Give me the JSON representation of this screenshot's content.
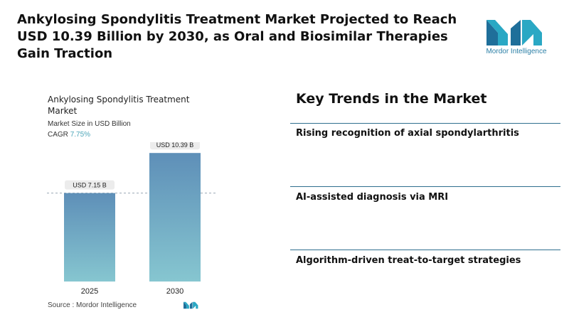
{
  "headline": "Ankylosing Spondylitis Treatment Market Projected to Reach USD 10.39 Billion by 2030, as Oral and Biosimilar Therapies Gain Traction",
  "brand": {
    "name": "Mordor Intelligence",
    "logo_text": "Mordor Intelligence",
    "colors": {
      "teal": "#2aa8c4",
      "blue": "#1f6f9a"
    }
  },
  "chart": {
    "title": "Ankylosing Spondylitis Treatment Market",
    "subtitle": "Market Size in USD Billion",
    "cagr_label": "CAGR",
    "cagr_value": "7.75%",
    "source": "Source :  Mordor Intelligence"
  },
  "chart_data": {
    "type": "bar",
    "categories": [
      "2025",
      "2030"
    ],
    "values": [
      7.15,
      10.39
    ],
    "data_labels": [
      "USD 7.15 B",
      "USD 10.39 B"
    ],
    "title": "Ankylosing Spondylitis Treatment Market",
    "ylabel": "Market Size in USD Billion",
    "reference_line_value": 7.15,
    "grid": false,
    "colors": {
      "bar_top": "#5e8fb8",
      "bar_bottom": "#86c6d0",
      "label_bg": "#ececec"
    }
  },
  "trends": {
    "title": "Key Trends in the Market",
    "items": [
      "Rising recognition of axial spondylarthritis",
      "AI-assisted diagnosis via MRI",
      "Algorithm-driven treat-to-target strategies"
    ]
  }
}
